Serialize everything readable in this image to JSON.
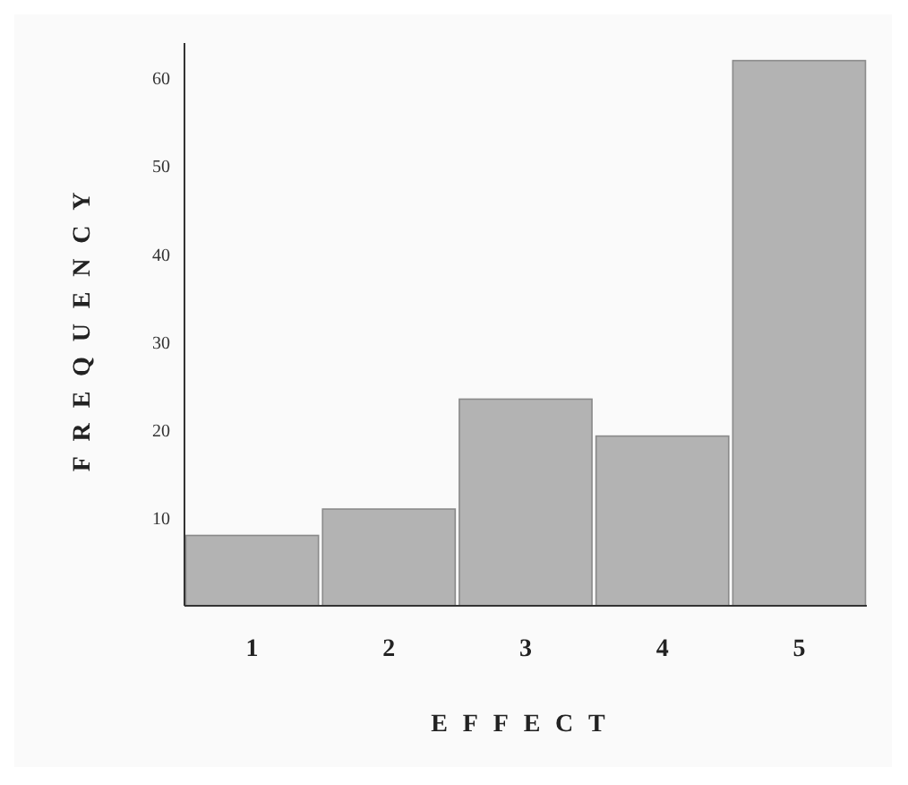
{
  "chart_data": {
    "type": "bar",
    "xlabel": "EFFECT",
    "ylabel": "FREQUENCY",
    "categories": [
      "1",
      "2",
      "3",
      "4",
      "5"
    ],
    "values": [
      8,
      11,
      23.5,
      19.3,
      62
    ],
    "color": "#b3b3b3",
    "ylim": [
      0,
      64
    ],
    "yticks": [
      10,
      20,
      30,
      40,
      50,
      60
    ],
    "grid": false
  }
}
